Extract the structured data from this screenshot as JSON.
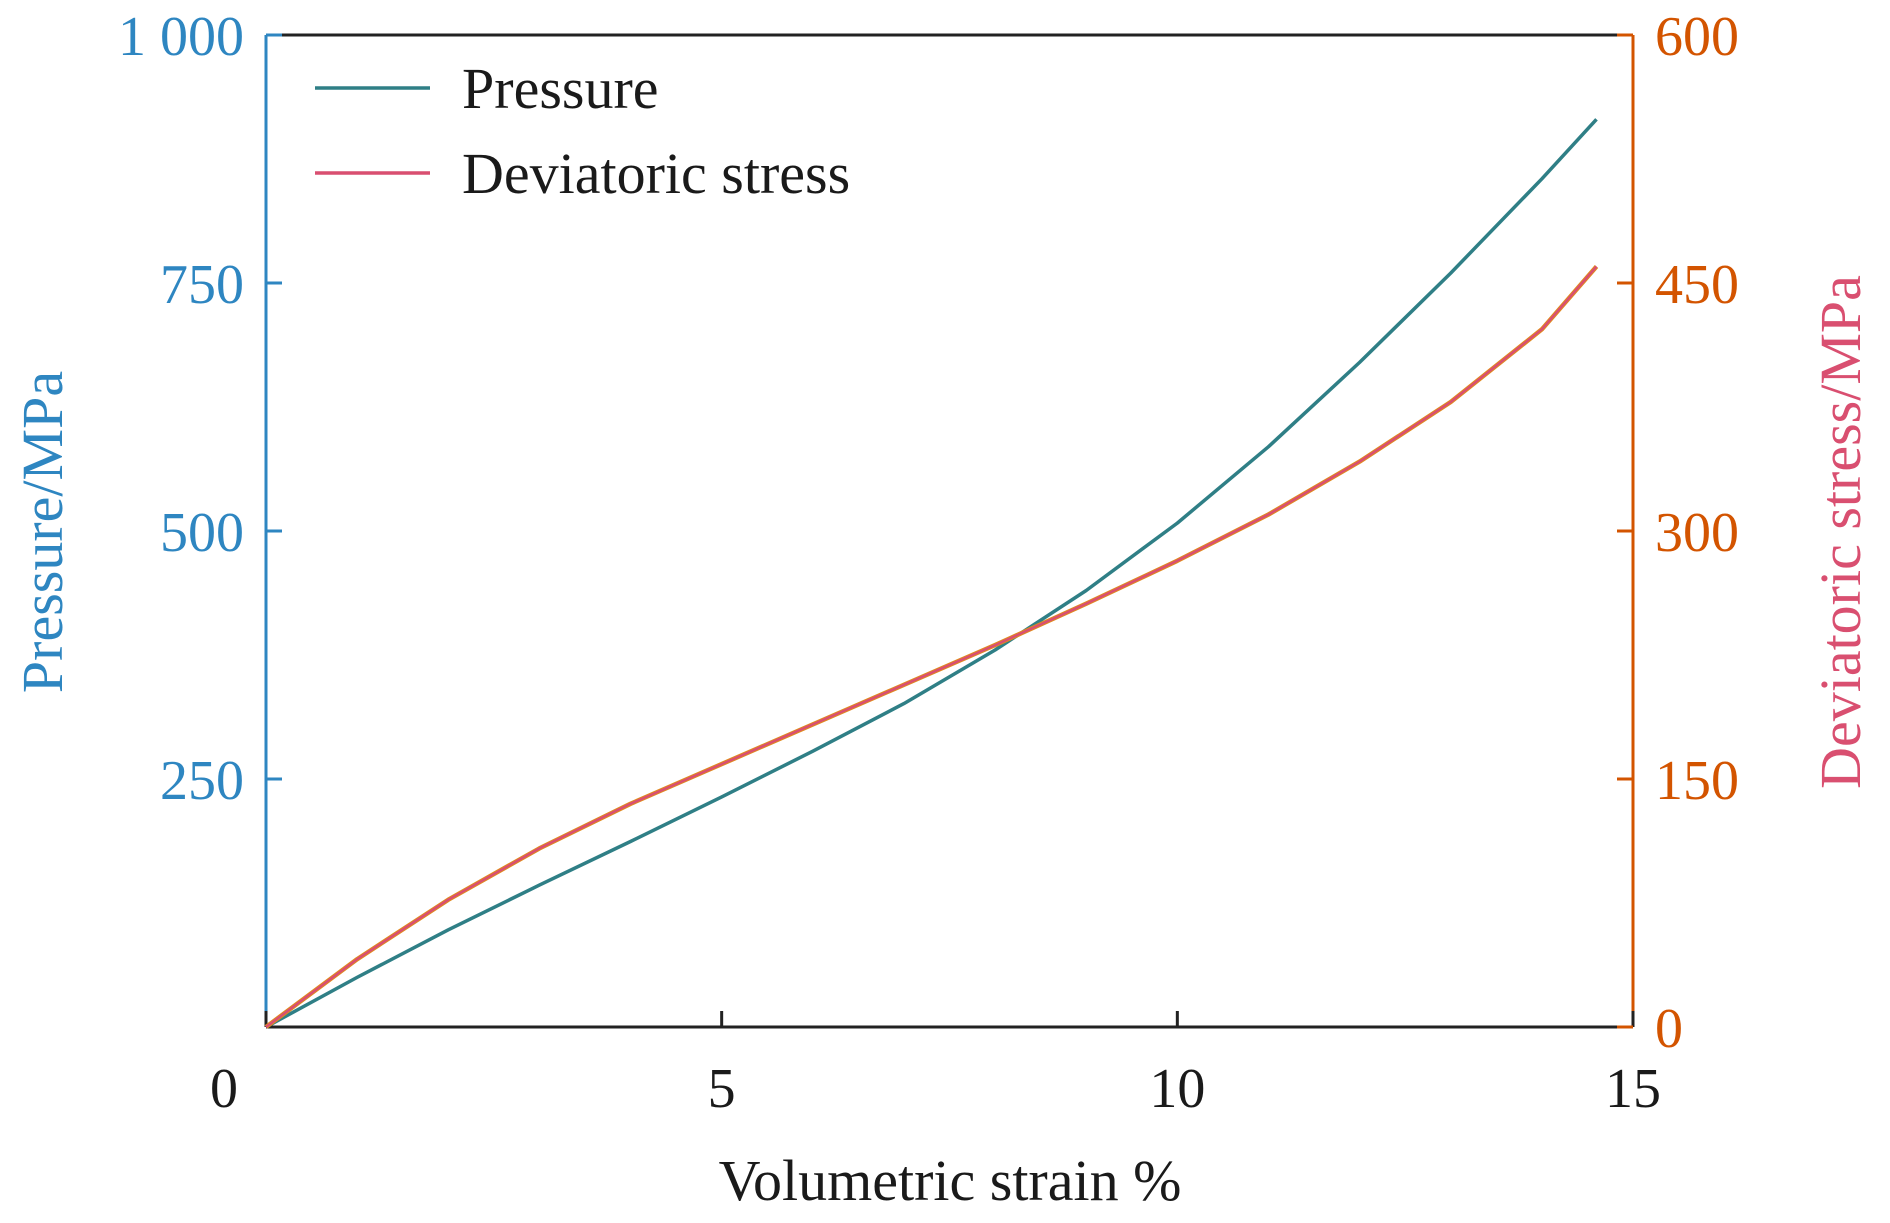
{
  "chart_data": {
    "type": "line",
    "xlabel": "Volumetric strain %",
    "ylabel_left": "Pressure/MPa",
    "ylabel_right": "Deviatoric stress/MPa",
    "xlim": [
      0,
      15
    ],
    "ylim_left": [
      0,
      1000
    ],
    "ylim_right": [
      0,
      600
    ],
    "x_ticks": [
      "0",
      "5",
      "10",
      "15"
    ],
    "y_ticks_left": [
      "250",
      "500",
      "750",
      "1 000"
    ],
    "y_ticks_right": [
      "0",
      "150",
      "300",
      "450",
      "600"
    ],
    "legend_position": "top-left",
    "grid": false,
    "colors": {
      "left_axis": "#2E86C1",
      "right_axis": "#D35400",
      "pressure_line": "#2F7F86",
      "deviatoric_line": "#D94F70",
      "deviatoric_line_under": "#E08A1E"
    },
    "series": [
      {
        "name": "Pressure",
        "axis": "left",
        "x": [
          0,
          1,
          2,
          3,
          4,
          5,
          6,
          7,
          8,
          9,
          10,
          11,
          12,
          13,
          14,
          14.6
        ],
        "y": [
          0,
          50,
          98,
          143,
          187,
          232,
          278,
          326,
          380,
          440,
          508,
          585,
          670,
          760,
          855,
          915
        ]
      },
      {
        "name": "Deviatoric stress",
        "axis": "right",
        "x": [
          0,
          1,
          2,
          3,
          4,
          5,
          6,
          7,
          8,
          9,
          10,
          11,
          12,
          13,
          14,
          14.6
        ],
        "y": [
          0,
          41,
          77,
          108,
          135,
          159,
          183,
          207,
          231,
          256,
          282,
          310,
          342,
          378,
          422,
          460
        ]
      }
    ]
  }
}
